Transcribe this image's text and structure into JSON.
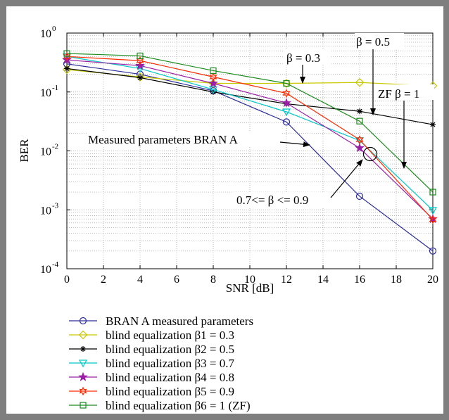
{
  "chart_data": {
    "type": "line",
    "xlabel": "SNR [dB]",
    "ylabel": "BER",
    "xlim": [
      0,
      20
    ],
    "ylim": [
      0.0001,
      1
    ],
    "y_scale": "log",
    "grid": true,
    "x_ticks": [
      0,
      2,
      4,
      6,
      8,
      10,
      12,
      14,
      16,
      18,
      20
    ],
    "x_tick_labels": [
      "0",
      "2",
      "4",
      "6",
      "8",
      "10",
      "12",
      "14",
      "16",
      "18",
      "20"
    ],
    "y_ticks": [
      0.0001,
      0.001,
      0.01,
      0.1,
      1
    ],
    "y_tick_labels": [
      {
        "base": "10",
        "exp": "-4"
      },
      {
        "base": "10",
        "exp": "-3"
      },
      {
        "base": "10",
        "exp": "-2"
      },
      {
        "base": "10",
        "exp": "-1"
      },
      {
        "base": "10",
        "exp": "0"
      }
    ],
    "legend_position": "bottom-left (below plot)",
    "series": [
      {
        "name": "BRAN A measured parameters",
        "color": "#2b2b9a",
        "marker": "circle",
        "x": [
          0,
          4,
          8,
          12,
          16,
          20
        ],
        "y": [
          0.3,
          0.2,
          0.105,
          0.031,
          0.0017,
          0.0002
        ]
      },
      {
        "name": "blind equalization β1 = 0.3",
        "color": "#c8c800",
        "marker": "diamond",
        "x": [
          0,
          4,
          8,
          12,
          16,
          20
        ],
        "y": [
          0.24,
          0.18,
          0.14,
          0.14,
          0.145,
          0.127
        ]
      },
      {
        "name": "blind equalization β2 = 0.5",
        "color": "#000000",
        "marker": "star",
        "x": [
          0,
          4,
          8,
          12,
          16,
          20
        ],
        "y": [
          0.25,
          0.175,
          0.1,
          0.063,
          0.047,
          0.028
        ]
      },
      {
        "name": "blind equalization β3 = 0.7",
        "color": "#00c8c8",
        "marker": "triangle-down",
        "x": [
          0,
          4,
          8,
          12,
          16,
          20
        ],
        "y": [
          0.4,
          0.25,
          0.11,
          0.046,
          0.015,
          0.00098
        ]
      },
      {
        "name": "blind equalization β4 = 0.8",
        "color": "#9b1fa6",
        "marker": "pentagram",
        "x": [
          0,
          4,
          8,
          12,
          16,
          20
        ],
        "y": [
          0.35,
          0.28,
          0.14,
          0.065,
          0.0112,
          0.0007
        ]
      },
      {
        "name": "blind equalization β5 = 0.9",
        "color": "#ff2a00",
        "marker": "hexagram",
        "x": [
          0,
          4,
          8,
          12,
          16,
          20
        ],
        "y": [
          0.4,
          0.34,
          0.18,
          0.095,
          0.0155,
          0.00068
        ]
      },
      {
        "name": "blind equalization β6 = 1 (ZF)",
        "color": "#1a8a1a",
        "marker": "square",
        "x": [
          0,
          4,
          8,
          12,
          16,
          20
        ],
        "y": [
          0.45,
          0.41,
          0.23,
          0.14,
          0.032,
          0.002
        ]
      }
    ],
    "annotations": [
      {
        "text": "β = 0.5"
      },
      {
        "text": "β = 0.3"
      },
      {
        "text": "ZF β = 1"
      },
      {
        "text": "Measured parameters BRAN A"
      },
      {
        "text": "0.7<= β <= 0.9"
      }
    ]
  }
}
